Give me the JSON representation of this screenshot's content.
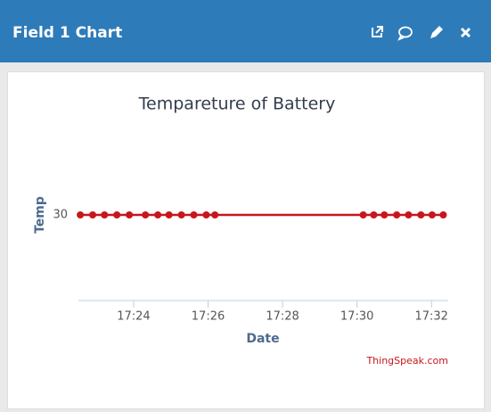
{
  "header": {
    "title": "Field 1 Chart"
  },
  "chart_data": {
    "type": "line",
    "title": "Tempareture of Battery",
    "x_label": "Date",
    "y_label": "Temp",
    "credits": "ThingSpeak.com",
    "x": [
      "17:22:34",
      "17:22:54",
      "17:23:13",
      "17:23:33",
      "17:23:53",
      "17:24:19",
      "17:24:39",
      "17:24:57",
      "17:25:17",
      "17:25:37",
      "17:25:57",
      "17:26:11",
      "17:30:10",
      "17:30:27",
      "17:30:44",
      "17:31:04",
      "17:31:23",
      "17:31:43",
      "17:32:01",
      "17:32:19"
    ],
    "series": [
      {
        "name": "Temp",
        "color": "#c8161d",
        "values": [
          30,
          30,
          30,
          30,
          30,
          30,
          30,
          30,
          30,
          30,
          30,
          30,
          30,
          30,
          30,
          30,
          30,
          30,
          30,
          30
        ]
      }
    ],
    "xlim": [
      "17:22:31",
      "17:32:27"
    ],
    "xticks": [
      "17:24",
      "17:26",
      "17:28",
      "17:30",
      "17:32"
    ],
    "ylim": [
      29,
      31
    ],
    "yticks": [
      30
    ],
    "grid": false,
    "legend": false
  }
}
